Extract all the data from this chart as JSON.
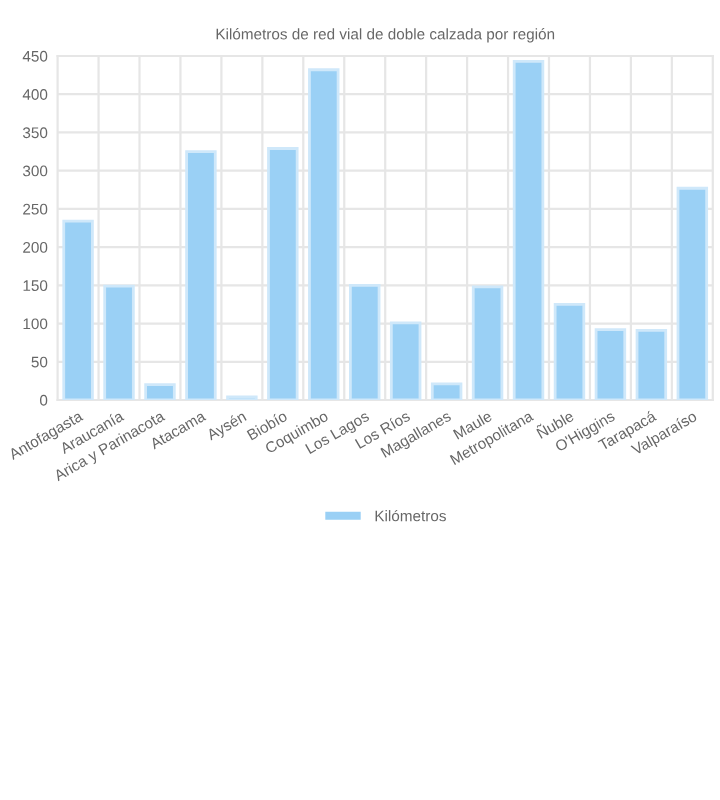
{
  "chart_data": {
    "type": "bar",
    "title": "Kilómetros de red vial de doble calzada por región",
    "categories": [
      "Antofagasta",
      "Araucanía",
      "Arica y Parinacota",
      "Atacama",
      "Aysén",
      "Biobío",
      "Coquimbo",
      "Los Lagos",
      "Los Ríos",
      "Magallanes",
      "Maule",
      "Metropolitana",
      "Ñuble",
      "O'Higgins",
      "Tarapacá",
      "Valparaíso"
    ],
    "series": [
      {
        "name": "Kilómetros",
        "color": "#9ad0f5",
        "values": [
          234,
          149,
          20,
          325,
          4,
          329,
          432,
          150,
          101,
          21,
          148,
          443,
          125,
          92,
          91,
          277
        ]
      }
    ],
    "ylim": [
      0,
      450
    ],
    "yticks": [
      0,
      50,
      100,
      150,
      200,
      250,
      300,
      350,
      400,
      450
    ],
    "grid": true,
    "legend": "bottom"
  }
}
